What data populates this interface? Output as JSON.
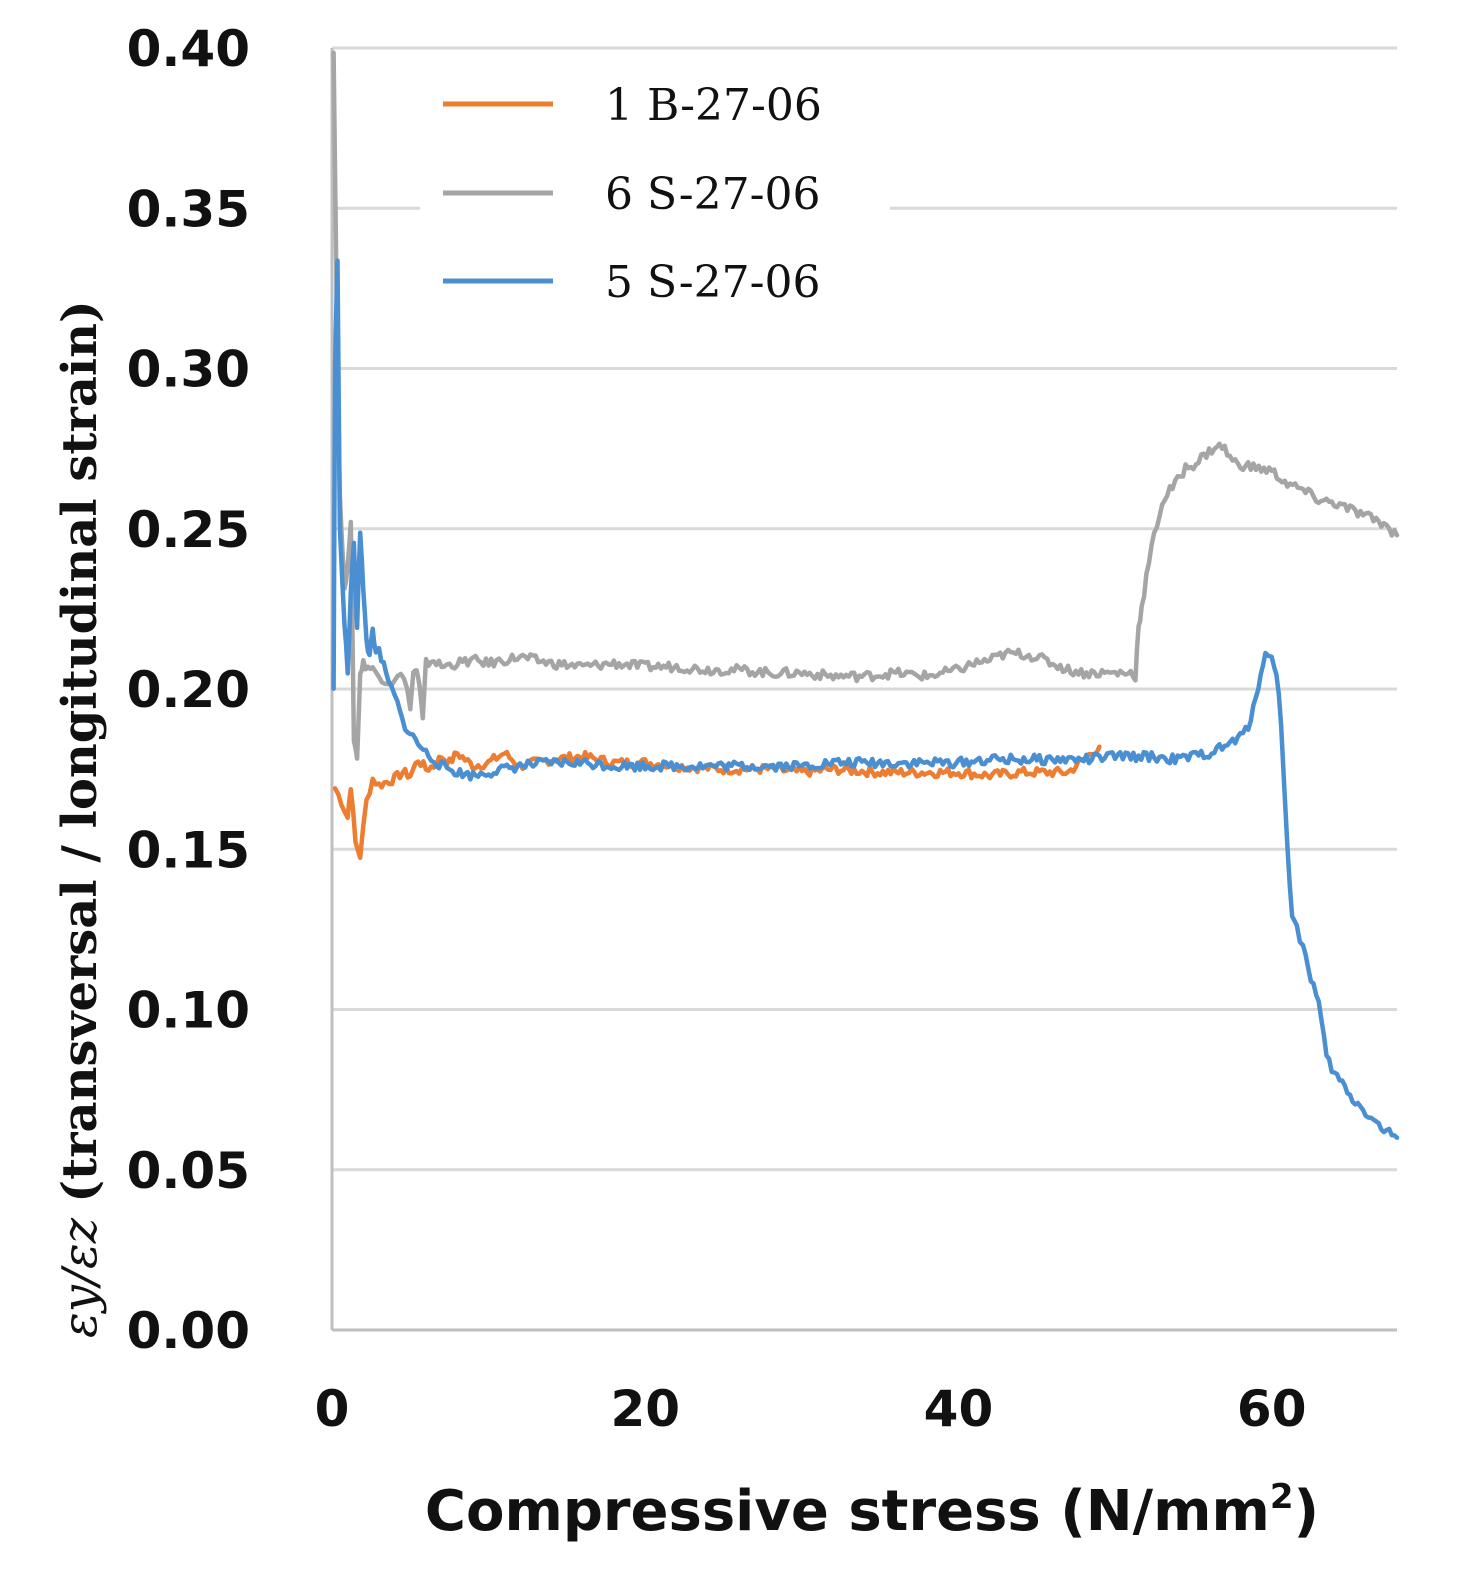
{
  "chart_data": {
    "type": "line",
    "title": "",
    "xlabel": {
      "main": "Compressive stress (N/mm",
      "sup": "2",
      "tail": ")"
    },
    "ylabel": {
      "symbol": "εy/εz",
      "text": "(transversal / longitudinal strain)"
    },
    "xlim": [
      0,
      68
    ],
    "ylim": [
      0,
      0.4
    ],
    "xticks": [
      0,
      20,
      40,
      60
    ],
    "xtick_labels": [
      "0",
      "20",
      "40",
      "60"
    ],
    "yticks": [
      0,
      0.05,
      0.1,
      0.15,
      0.2,
      0.25,
      0.3,
      0.35,
      0.4
    ],
    "ytick_labels": [
      "0.00",
      "0.05",
      "0.10",
      "0.15",
      "0.20",
      "0.25",
      "0.30",
      "0.35",
      "0.40"
    ],
    "grid": "horizontal",
    "legend_position": "top-left",
    "series": [
      {
        "name": "1 B-27-06",
        "color": "#ED7D31",
        "x": [
          0.2,
          0.6,
          1.0,
          1.2,
          1.5,
          1.8,
          2.2,
          2.6,
          3.0,
          3.5,
          4.0,
          4.5,
          5.0,
          5.5,
          6.0,
          6.5,
          7.0,
          7.5,
          8.0,
          9.0,
          10,
          11,
          12,
          14,
          16,
          18,
          20,
          22,
          25,
          28,
          30,
          32,
          35,
          38,
          40,
          42,
          44,
          46,
          47,
          47.5,
          48,
          48.5,
          49
        ],
        "y": [
          0.169,
          0.165,
          0.16,
          0.17,
          0.152,
          0.148,
          0.165,
          0.172,
          0.17,
          0.171,
          0.172,
          0.174,
          0.173,
          0.178,
          0.175,
          0.176,
          0.179,
          0.177,
          0.18,
          0.176,
          0.177,
          0.18,
          0.176,
          0.178,
          0.179,
          0.177,
          0.177,
          0.176,
          0.175,
          0.175,
          0.174,
          0.175,
          0.174,
          0.174,
          0.174,
          0.173,
          0.174,
          0.174,
          0.174,
          0.176,
          0.178,
          0.18,
          0.182
        ]
      },
      {
        "name": "6 S-27-06",
        "color": "#A5A5A5",
        "x": [
          0.1,
          0.3,
          0.5,
          0.8,
          1.0,
          1.2,
          1.4,
          1.6,
          1.8,
          2.0,
          2.3,
          2.6,
          3.0,
          3.4,
          3.8,
          4.2,
          4.6,
          5.0,
          5.2,
          5.4,
          5.6,
          5.8,
          6.0,
          6.5,
          7.0,
          8.0,
          9.0,
          10,
          11,
          12,
          14,
          16,
          18,
          20,
          22,
          24,
          26,
          28,
          30,
          32,
          34,
          36,
          38,
          40,
          41,
          42,
          43,
          44,
          45,
          46,
          47,
          48,
          49,
          50,
          51,
          51.3,
          51.5,
          51.7,
          52,
          52.5,
          53,
          53.5,
          54,
          54.5,
          55,
          55.5,
          56,
          56.5,
          57,
          57.5,
          58,
          59,
          60,
          61,
          62,
          63,
          64,
          65,
          66,
          67,
          68
        ],
        "y": [
          0.4,
          0.32,
          0.26,
          0.23,
          0.24,
          0.251,
          0.185,
          0.178,
          0.205,
          0.208,
          0.207,
          0.206,
          0.204,
          0.203,
          0.202,
          0.205,
          0.203,
          0.195,
          0.205,
          0.206,
          0.2,
          0.19,
          0.208,
          0.209,
          0.207,
          0.208,
          0.209,
          0.208,
          0.209,
          0.21,
          0.208,
          0.207,
          0.208,
          0.207,
          0.207,
          0.206,
          0.206,
          0.205,
          0.205,
          0.204,
          0.204,
          0.205,
          0.204,
          0.206,
          0.208,
          0.209,
          0.211,
          0.211,
          0.21,
          0.208,
          0.206,
          0.205,
          0.205,
          0.205,
          0.205,
          0.204,
          0.22,
          0.225,
          0.235,
          0.248,
          0.258,
          0.262,
          0.265,
          0.269,
          0.27,
          0.272,
          0.274,
          0.276,
          0.275,
          0.271,
          0.27,
          0.269,
          0.268,
          0.264,
          0.262,
          0.259,
          0.258,
          0.256,
          0.254,
          0.252,
          0.248
        ]
      },
      {
        "name": "5 S-27-06",
        "color": "#4A8FD1",
        "x": [
          0.1,
          0.2,
          0.35,
          0.5,
          0.8,
          1.0,
          1.2,
          1.4,
          1.6,
          1.8,
          2.0,
          2.2,
          2.4,
          2.6,
          2.8,
          3.0,
          3.3,
          3.6,
          4.0,
          4.5,
          5.0,
          5.5,
          6.0,
          6.5,
          7.0,
          7.5,
          8.0,
          9.0,
          10,
          11,
          12,
          14,
          16,
          18,
          20,
          22,
          25,
          28,
          30,
          32,
          35,
          38,
          40,
          42,
          44,
          46,
          48,
          50,
          52,
          54,
          55,
          56,
          57,
          58,
          58.5,
          59,
          59.3,
          59.6,
          60,
          60.3,
          60.6,
          61,
          61.3,
          61.6,
          62,
          62.5,
          63,
          63.5,
          64,
          64.5,
          65,
          66,
          67,
          68
        ],
        "y": [
          0.2,
          0.3,
          0.335,
          0.25,
          0.22,
          0.205,
          0.23,
          0.245,
          0.22,
          0.25,
          0.23,
          0.215,
          0.21,
          0.22,
          0.21,
          0.212,
          0.207,
          0.202,
          0.198,
          0.19,
          0.186,
          0.183,
          0.18,
          0.178,
          0.176,
          0.175,
          0.174,
          0.173,
          0.174,
          0.175,
          0.176,
          0.177,
          0.177,
          0.176,
          0.176,
          0.176,
          0.176,
          0.176,
          0.176,
          0.177,
          0.177,
          0.177,
          0.177,
          0.178,
          0.178,
          0.178,
          0.178,
          0.179,
          0.179,
          0.178,
          0.179,
          0.18,
          0.182,
          0.185,
          0.188,
          0.198,
          0.205,
          0.21,
          0.211,
          0.205,
          0.19,
          0.15,
          0.13,
          0.125,
          0.12,
          0.11,
          0.102,
          0.085,
          0.08,
          0.077,
          0.073,
          0.068,
          0.063,
          0.06
        ]
      }
    ]
  }
}
